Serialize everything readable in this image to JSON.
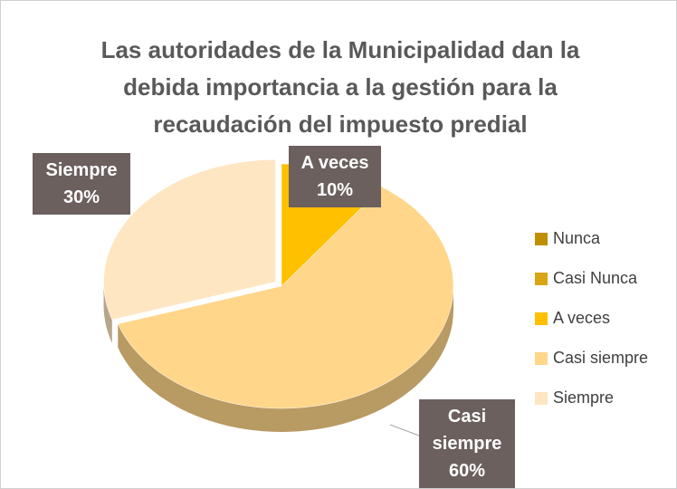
{
  "chart_data": {
    "type": "pie",
    "title": "Las autoridades de la Municipalidad dan la debida importancia a la gestión para la recaudación del impuesto predial",
    "categories": [
      "Nunca",
      "Casi Nunca",
      "A veces",
      "Casi siempre",
      "Siempre"
    ],
    "values": [
      0,
      0,
      10,
      60,
      30
    ],
    "value_labels": [
      null,
      null,
      "10%",
      "60%",
      "30%"
    ],
    "colors": [
      "#bf8f00",
      "#d9a514",
      "#ffc000",
      "#ffd68a",
      "#ffe6c2"
    ],
    "legend": "right"
  }
}
